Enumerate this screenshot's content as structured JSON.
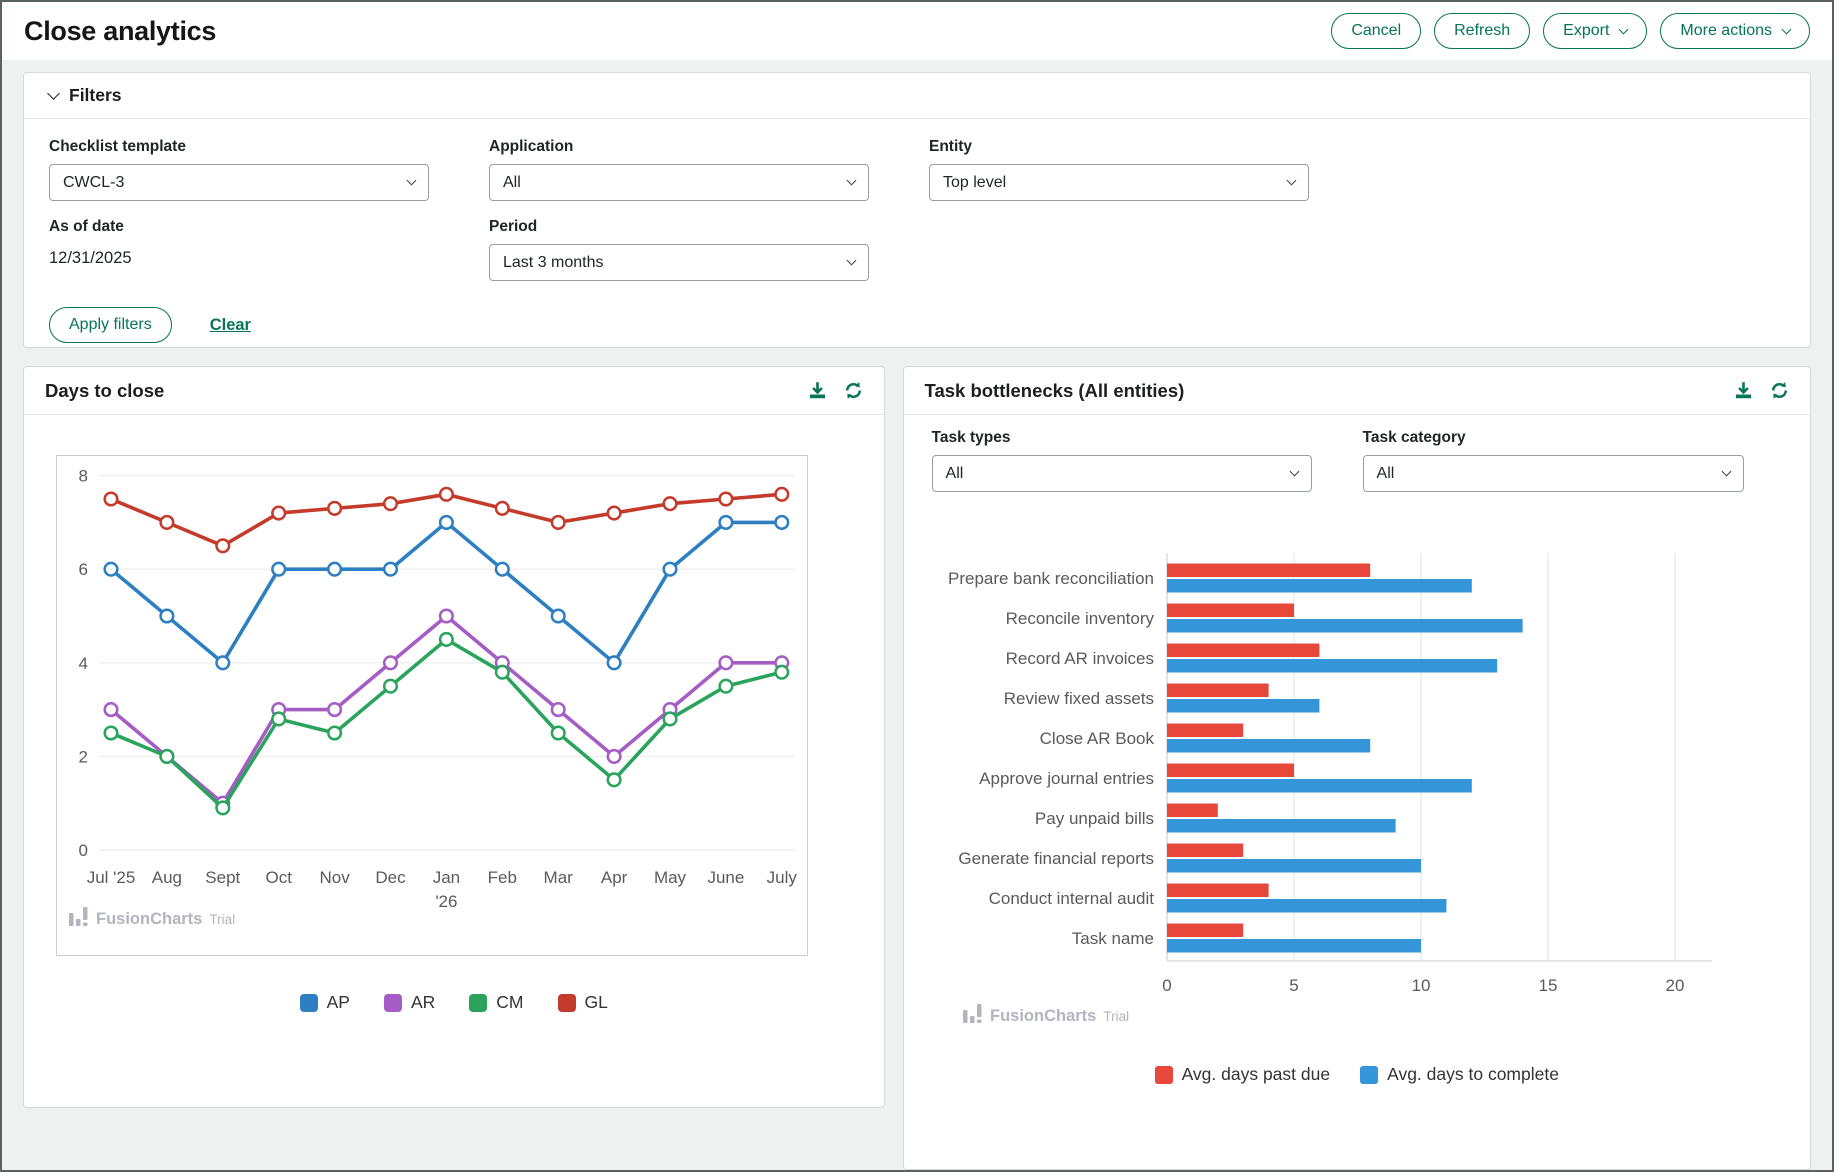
{
  "header": {
    "title": "Close analytics",
    "buttons": [
      {
        "label": "Cancel",
        "chevron": false
      },
      {
        "label": "Refresh",
        "chevron": false
      },
      {
        "label": "Export",
        "chevron": true
      },
      {
        "label": "More actions",
        "chevron": true
      }
    ]
  },
  "filters": {
    "title": "Filters",
    "fields": {
      "checklist_template": {
        "label": "Checklist template",
        "value": "CWCL-3"
      },
      "application": {
        "label": "Application",
        "value": "All"
      },
      "entity": {
        "label": "Entity",
        "value": "Top level"
      },
      "as_of_date": {
        "label": "As of date",
        "value": "12/31/2025"
      },
      "period": {
        "label": "Period",
        "value": "Last 3 months"
      }
    },
    "apply_label": "Apply filters",
    "clear_label": "Clear"
  },
  "cards": {
    "days_to_close": {
      "title": "Days to close",
      "icons": [
        "download-icon",
        "refresh-icon"
      ],
      "watermark": {
        "brand": "FusionCharts",
        "suffix": "Trial"
      }
    },
    "task_bottlenecks": {
      "title": "Task bottlenecks (All entities)",
      "icons": [
        "download-icon",
        "refresh-icon"
      ],
      "task_types": {
        "label": "Task types",
        "value": "All"
      },
      "task_category": {
        "label": "Task category",
        "value": "All"
      },
      "watermark": {
        "brand": "FusionCharts",
        "suffix": "Trial"
      }
    }
  },
  "colors": {
    "accent_green": "#077457",
    "page_bg": "#edf1ef",
    "chart_text": "#5a5a5a",
    "watermark": "#b2b4c0"
  },
  "chart_data": [
    {
      "id": "days_to_close",
      "type": "line",
      "title": "Days to close",
      "categories": [
        "Jul '25",
        "Aug",
        "Sept",
        "Oct",
        "Nov",
        "Dec",
        "Jan '26",
        "Feb",
        "Mar",
        "Apr",
        "May",
        "June",
        "July"
      ],
      "split_ticks": {
        "Jan '26": [
          "Jan",
          "'26"
        ]
      },
      "series": [
        {
          "name": "AP",
          "color": "#2d7fc1",
          "values": [
            6,
            5,
            4,
            6,
            6,
            6,
            7,
            6,
            5,
            4,
            6,
            7,
            7
          ]
        },
        {
          "name": "AR",
          "color": "#a55cc4",
          "values": [
            3,
            2,
            1,
            3,
            3,
            4,
            5,
            4,
            3,
            2,
            3,
            4,
            4
          ]
        },
        {
          "name": "CM",
          "color": "#2aa45c",
          "values": [
            2.5,
            2,
            0.9,
            2.8,
            2.5,
            3.5,
            4.5,
            3.8,
            2.5,
            1.5,
            2.8,
            3.5,
            3.8
          ]
        },
        {
          "name": "GL",
          "color": "#c43b2c",
          "values": [
            7.5,
            7,
            6.5,
            7.2,
            7.3,
            7.4,
            7.6,
            7.3,
            7,
            7.2,
            7.4,
            7.5,
            7.6
          ]
        }
      ],
      "ylim": [
        0,
        8
      ],
      "yticks": [
        0,
        2,
        4,
        6,
        8
      ],
      "grid": true,
      "legend_position": "bottom"
    },
    {
      "id": "task_bottlenecks",
      "type": "bar",
      "orientation": "horizontal",
      "title": "Task bottlenecks (All entities)",
      "categories": [
        "Prepare bank reconciliation",
        "Reconcile inventory",
        "Record AR invoices",
        "Review fixed assets",
        "Close AR Book",
        "Approve journal entries",
        "Pay unpaid bills",
        "Generate financial reports",
        "Conduct internal audit",
        "Task name"
      ],
      "series": [
        {
          "name": "Avg. days past due",
          "color": "#e8483c",
          "values": [
            8,
            5,
            6,
            4,
            3,
            5,
            2,
            3,
            4,
            3
          ]
        },
        {
          "name": "Avg. days to complete",
          "color": "#3495d8",
          "values": [
            12,
            14,
            13,
            6,
            8,
            12,
            9,
            10,
            11,
            10
          ]
        }
      ],
      "xlim": [
        0,
        20
      ],
      "xticks": [
        0,
        5,
        10,
        15,
        20
      ],
      "grid": true,
      "legend_position": "bottom"
    }
  ]
}
